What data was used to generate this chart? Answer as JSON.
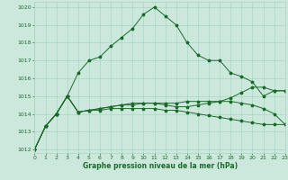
{
  "title": "Graphe pression niveau de la mer (hPa)",
  "bg_color": "#cce8dd",
  "grid_color": "#aad4c4",
  "line_color": "#1a6b2a",
  "xlim": [
    0,
    23
  ],
  "ylim": [
    1011.8,
    1020.3
  ],
  "yticks": [
    1012,
    1013,
    1014,
    1015,
    1016,
    1017,
    1018,
    1019,
    1020
  ],
  "xticks": [
    0,
    1,
    2,
    3,
    4,
    5,
    6,
    7,
    8,
    9,
    10,
    11,
    12,
    13,
    14,
    15,
    16,
    17,
    18,
    19,
    20,
    21,
    22,
    23
  ],
  "series": {
    "main": [
      1012.0,
      1013.3,
      1014.0,
      1015.0,
      1016.3,
      1017.0,
      1017.2,
      1017.8,
      1018.3,
      1018.8,
      1019.6,
      1020.0,
      1019.5,
      1019.0,
      1018.0,
      1017.3,
      1017.0,
      1017.0,
      1016.3,
      1016.1,
      1015.8,
      1015.0,
      1015.3,
      1015.3
    ],
    "series2": [
      1012.0,
      1013.3,
      1014.0,
      1015.0,
      1014.1,
      1014.2,
      1014.3,
      1014.4,
      1014.5,
      1014.6,
      1014.6,
      1014.6,
      1014.5,
      1014.4,
      1014.4,
      1014.5,
      1014.6,
      1014.7,
      1014.9,
      1015.2,
      1015.5,
      1015.5,
      1015.3,
      1015.3
    ],
    "series3": [
      1012.0,
      1013.3,
      1014.0,
      1015.0,
      1014.1,
      1014.2,
      1014.3,
      1014.4,
      1014.5,
      1014.5,
      1014.6,
      1014.6,
      1014.6,
      1014.6,
      1014.7,
      1014.7,
      1014.7,
      1014.7,
      1014.7,
      1014.6,
      1014.5,
      1014.3,
      1014.0,
      1013.4
    ],
    "series4": [
      1012.0,
      1013.3,
      1014.0,
      1015.0,
      1014.1,
      1014.2,
      1014.2,
      1014.3,
      1014.3,
      1014.3,
      1014.3,
      1014.3,
      1014.2,
      1014.2,
      1014.1,
      1014.0,
      1013.9,
      1013.8,
      1013.7,
      1013.6,
      1013.5,
      1013.4,
      1013.4,
      1013.4
    ]
  }
}
